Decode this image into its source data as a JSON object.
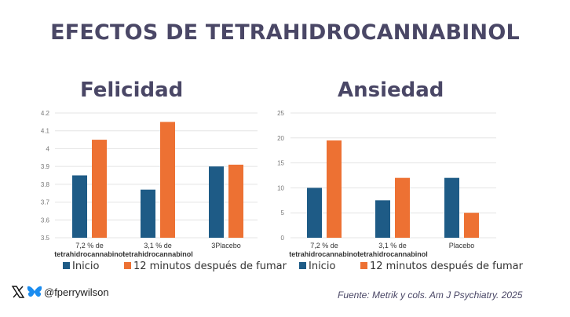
{
  "title": "EFECTOS DE TETRAHIDROCANNABINOL",
  "colors": {
    "inicio": "#1e5b86",
    "despues": "#ed7133",
    "title": "#4a4766",
    "grid": "#e4e4e4",
    "tick": "#777777"
  },
  "chart_data": [
    {
      "type": "bar",
      "title": "Felicidad",
      "categories": [
        "7,2 % de\ntetrahidrocannabinol",
        "3,1 % de\ntetrahidrocannabinol",
        "3Placebo"
      ],
      "series": [
        {
          "name": "Inicio",
          "values": [
            3.85,
            3.77,
            3.9
          ]
        },
        {
          "name": "12 minutos después de fumar",
          "values": [
            4.05,
            4.15,
            3.91
          ]
        }
      ],
      "yticks": [
        "3.5",
        "3.6",
        "3.7",
        "3.8",
        "3.9",
        "4",
        "4.1",
        "4.2"
      ],
      "ylim": [
        3.5,
        4.2
      ],
      "xlabel": "",
      "ylabel": "",
      "grid": true,
      "legend": "bottom"
    },
    {
      "type": "bar",
      "title": "Ansiedad",
      "categories": [
        "7,2 % de\ntetrahidrocannabinol",
        "3,1 % de\ntetrahidrocannabinol",
        "Placebo"
      ],
      "series": [
        {
          "name": "Inicio",
          "values": [
            10,
            7.5,
            12
          ]
        },
        {
          "name": "12 minutos después de fumar",
          "values": [
            19.5,
            12,
            5
          ]
        }
      ],
      "yticks": [
        "0",
        "5",
        "10",
        "15",
        "20",
        "25"
      ],
      "ylim": [
        0,
        25
      ],
      "xlabel": "",
      "ylabel": "",
      "grid": true,
      "legend": "bottom"
    }
  ],
  "footer": {
    "handle": "@fperrywilson",
    "icons": [
      "x-logo-icon",
      "bluesky-butterfly-icon"
    ],
    "source": "Fuente: Metrik y cols. Am J Psychiatry. 2025"
  }
}
